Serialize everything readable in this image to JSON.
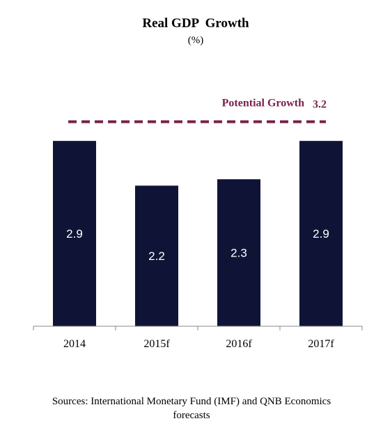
{
  "chart_data": {
    "type": "bar",
    "title": "Real GDP  Growth",
    "subtitle": "(%)",
    "categories": [
      "2014",
      "2015f",
      "2016f",
      "2017f"
    ],
    "values": [
      2.9,
      2.2,
      2.3,
      2.9
    ],
    "data_labels": [
      "2.9",
      "2.2",
      "2.3",
      "2.9"
    ],
    "reference_line": {
      "label": "Potential Growth",
      "value": 3.2,
      "value_label": "3.2",
      "style": "dashed"
    },
    "ylim": [
      0,
      3.6
    ],
    "grid": false,
    "legend": "none",
    "xlabel": "",
    "ylabel": ""
  },
  "colors": {
    "bar": "#0f1437",
    "reference": "#7a1f4b",
    "axis": "#888888"
  },
  "footer": {
    "source_line1": "Sources: International Monetary Fund (IMF) and QNB Economics",
    "source_line2": "forecasts"
  }
}
